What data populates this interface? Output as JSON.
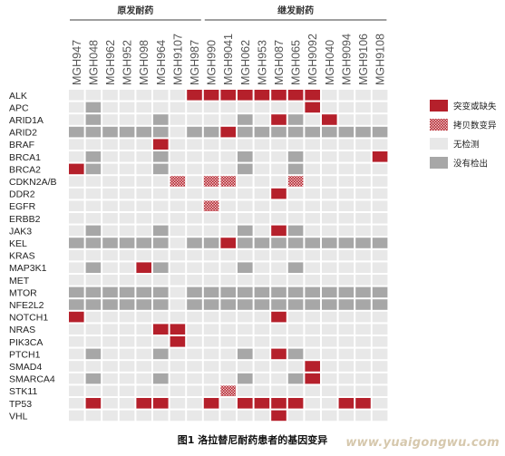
{
  "caption": "图1 洛拉替尼耐药患者的基因变异",
  "watermark": "www.yuaigongwu.com",
  "colors": {
    "mutation": "#b5202b",
    "copy_number": "#b5202b",
    "not_detected": "#e8e8e8",
    "none_detected": "#a7a7a7",
    "grid": "#ffffff",
    "bracket": "#666666",
    "text": "#222222"
  },
  "chart_data": {
    "type": "heatmap",
    "groups": [
      {
        "label": "原发耐药",
        "columns": [
          "MGH947",
          "MGH048",
          "MGH962",
          "MGH952",
          "MGH098",
          "MGH964",
          "MGH9107",
          "MGH987"
        ]
      },
      {
        "label": "继发耐药",
        "columns": [
          "MGH990",
          "MGH9041",
          "MGH062",
          "MGH953",
          "MGH087",
          "MGH065",
          "MGH9092",
          "MGH040",
          "MGH9094",
          "MGH9106",
          "MGH9108"
        ]
      }
    ],
    "samples": [
      "MGH947",
      "MGH048",
      "MGH962",
      "MGH952",
      "MGH098",
      "MGH964",
      "MGH9107",
      "MGH987",
      "MGH990",
      "MGH9041",
      "MGH062",
      "MGH953",
      "MGH087",
      "MGH065",
      "MGH9092",
      "MGH040",
      "MGH9094",
      "MGH9106",
      "MGH9108"
    ],
    "genes": [
      "ALK",
      "APC",
      "ARID1A",
      "ARID2",
      "BRAF",
      "BRCA1",
      "BRCA2",
      "CDKN2A/B",
      "DDR2",
      "EGFR",
      "ERBB2",
      "JAK3",
      "KEL",
      "KRAS",
      "MAP3K1",
      "MET",
      "MTOR",
      "NFE2L2",
      "NOTCH1",
      "NRAS",
      "PIK3CA",
      "PTCH1",
      "SMAD4",
      "SMARCA4",
      "STK11",
      "TP53",
      "VHL"
    ],
    "legend": [
      {
        "code": "M",
        "label": "突变或缺失"
      },
      {
        "code": "C",
        "label": "拷贝数变异"
      },
      {
        "code": "N",
        "label": "无检测"
      },
      {
        "code": "G",
        "label": "没有检出"
      }
    ],
    "matrix": [
      "NNNNNNNMMMMMMMMNNNN",
      "NGNNNNNNNNNNNNMNNNN",
      "NGNNNGNNNNGNMGNMNNN",
      "GGGGGGNGGMGGGGGGGGG",
      "NNNNNMNNNNNNNNNNNNN",
      "NGNNNGNNNNGNNGNNNNM",
      "MGNNNGNNNNGNNGNNNNN",
      "NNNNNNCNCCNNNCNNNNN",
      "NNNNNNNNNNNNMNNNNNN",
      "NNNNNNNNCNNNNNNNNNN",
      "NNNNNNNNNNNNNNNNNNN",
      "NGNNNGNNNNGNMGNNNNN",
      "GGGGGGNGGMGGGGGGGGG",
      "NNNNNNNNNNNNNNNNNNN",
      "NGNNMGNNNNGNNGNNNNN",
      "NNNNNNNNNNNNNNNNNNN",
      "GGGGGGNGGGGGGGGGGGG",
      "GGGGGGNGGGGGGGGGGGG",
      "MNNNNNNNNNNNMNNNNNN",
      "NNNNNMMNNNNNNNNNNNN",
      "NNNNNNMNNNNNNNNNNNN",
      "NGNNNGNNNNGNMGNNNNN",
      "NNNNNNNNNNNNNNMNNNN",
      "NGNNNGNNNNGNNGMNNNN",
      "NNNNNNNNNCNNNNNNNNN",
      "NMNNMMNNMNMMMMNNMMN",
      "NNNNNNNNNNNNMNNNNNN"
    ]
  }
}
